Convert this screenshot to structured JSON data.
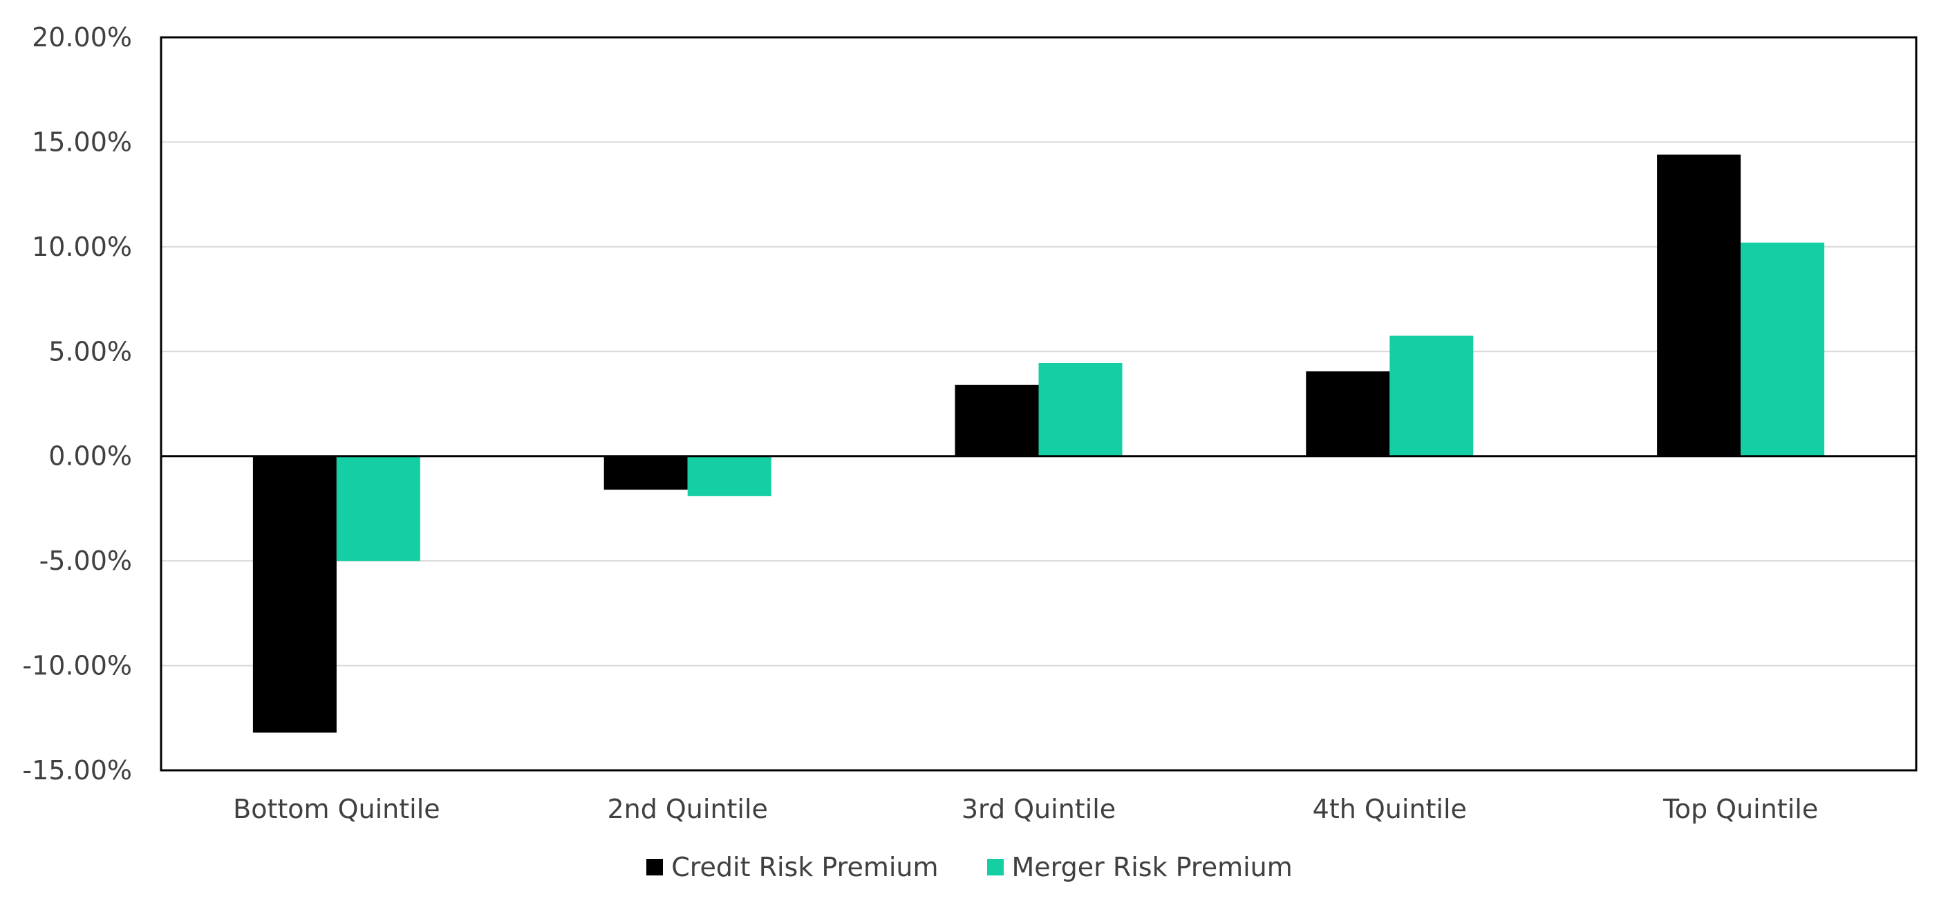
{
  "chart_data": {
    "type": "bar",
    "categories": [
      "Bottom Quintile",
      "2nd Quintile",
      "3rd Quintile",
      "4th Quintile",
      "Top Quintile"
    ],
    "series": [
      {
        "name": "Credit Risk Premium",
        "color": "#000000",
        "values": [
          -13.2,
          -1.6,
          3.4,
          4.05,
          14.4
        ]
      },
      {
        "name": "Merger Risk Premium",
        "color": "#14CFA4",
        "values": [
          -5.0,
          -1.9,
          4.45,
          5.75,
          10.2
        ]
      }
    ],
    "ylim": [
      -15,
      20
    ],
    "yticks": [
      20,
      15,
      10,
      5,
      0,
      -5,
      -10,
      -15
    ],
    "ytick_labels": [
      "20.00%",
      "15.00%",
      "10.00%",
      "5.00%",
      "0.00%",
      "-5.00%",
      "-10.00%",
      "-15.00%"
    ],
    "grid": true,
    "legend_position": "bottom-center",
    "title": "",
    "xlabel": "",
    "ylabel": ""
  }
}
